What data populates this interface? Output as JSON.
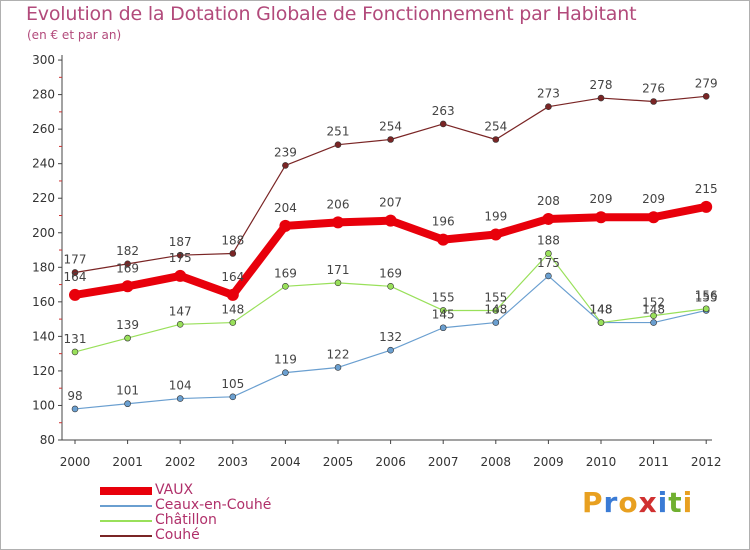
{
  "chart_data": {
    "type": "line",
    "title": "Evolution de la Dotation Globale de Fonctionnement par Habitant",
    "subtitle": "(en € et par an)",
    "x": [
      "2000",
      "2001",
      "2002",
      "2003",
      "2004",
      "2005",
      "2006",
      "2007",
      "2008",
      "2009",
      "2010",
      "2011",
      "2012"
    ],
    "ylim": [
      80,
      300
    ],
    "yticks": [
      80,
      100,
      120,
      140,
      160,
      180,
      200,
      220,
      240,
      260,
      280,
      300
    ],
    "grid": false,
    "legend_position": "bottom-left",
    "series": [
      {
        "name": "VAUX",
        "color": "#e8000b",
        "values": [
          164,
          169,
          175,
          164,
          204,
          206,
          207,
          196,
          199,
          208,
          209,
          209,
          215
        ]
      },
      {
        "name": "Ceaux-en-Couhé",
        "color": "#6a9fd0",
        "values": [
          98,
          101,
          104,
          105,
          119,
          122,
          132,
          145,
          148,
          175,
          148,
          148,
          155
        ]
      },
      {
        "name": "Châtillon",
        "color": "#99e05a",
        "values": [
          131,
          139,
          147,
          148,
          169,
          171,
          169,
          155,
          155,
          188,
          148,
          152,
          156
        ]
      },
      {
        "name": "Couhé",
        "color": "#7a2525",
        "values": [
          177,
          182,
          187,
          188,
          239,
          251,
          254,
          263,
          254,
          273,
          278,
          276,
          279
        ]
      }
    ]
  },
  "logo": {
    "letters": [
      "P",
      "r",
      "o",
      "x",
      "i",
      "t",
      "i"
    ],
    "colors": [
      "#e8a020",
      "#3a7bd5",
      "#e8a020",
      "#d03030",
      "#3a7bd5",
      "#70b030",
      "#e8a020"
    ]
  }
}
